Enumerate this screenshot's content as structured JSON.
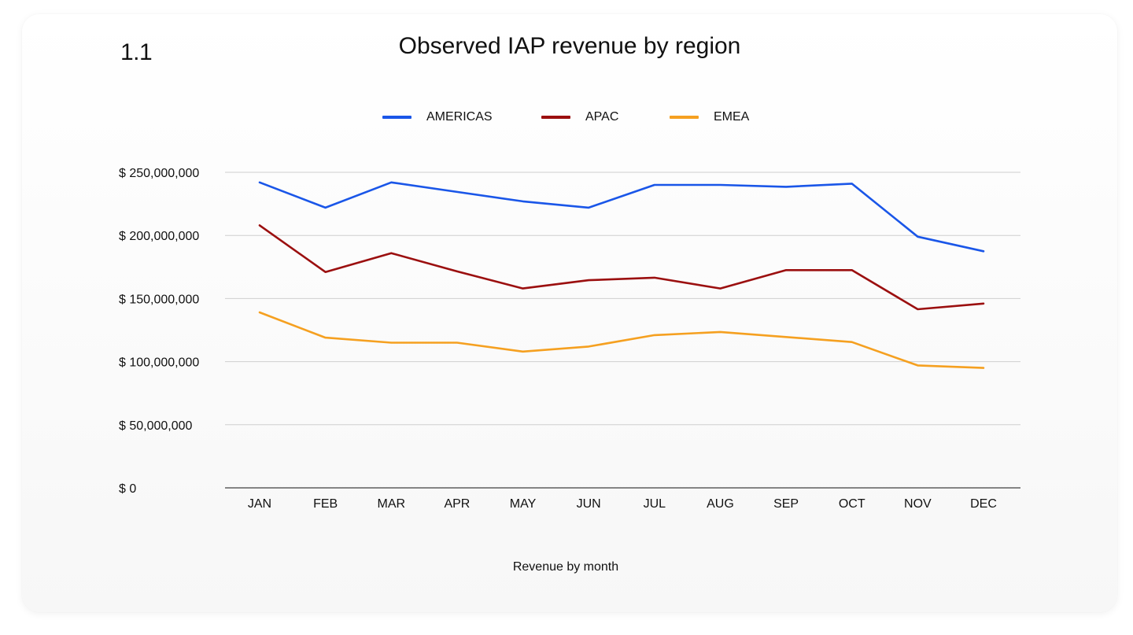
{
  "figure_number": "1.1",
  "chart_data": {
    "type": "line",
    "title": "Observed IAP revenue by region",
    "xlabel": "Revenue by month",
    "ylabel": "",
    "categories": [
      "JAN",
      "FEB",
      "MAR",
      "APR",
      "MAY",
      "JUN",
      "JUL",
      "AUG",
      "SEP",
      "OCT",
      "NOV",
      "DEC"
    ],
    "ylim": [
      0,
      250000000
    ],
    "yticks": [
      0,
      50000000,
      100000000,
      150000000,
      200000000,
      250000000
    ],
    "ytick_labels": [
      "$ 0",
      "$ 50,000,000",
      "$ 100,000,000",
      "$ 150,000,000",
      "$ 200,000,000",
      "$ 250,000,000"
    ],
    "grid": true,
    "legend_position": "top-center",
    "series": [
      {
        "name": "AMERICAS",
        "color": "#1a56e8",
        "values": [
          242000000,
          222000000,
          242000000,
          234500000,
          227000000,
          222000000,
          240000000,
          240000000,
          238500000,
          241000000,
          199000000,
          187500000
        ]
      },
      {
        "name": "APAC",
        "color": "#9b0f0f",
        "values": [
          208000000,
          171000000,
          186000000,
          171500000,
          158000000,
          164500000,
          166500000,
          158000000,
          172500000,
          172500000,
          141500000,
          146000000
        ]
      },
      {
        "name": "EMEA",
        "color": "#f5a020",
        "values": [
          139000000,
          119000000,
          115000000,
          115000000,
          108000000,
          112000000,
          121000000,
          123500000,
          119500000,
          115500000,
          97000000,
          95000000
        ]
      }
    ]
  }
}
